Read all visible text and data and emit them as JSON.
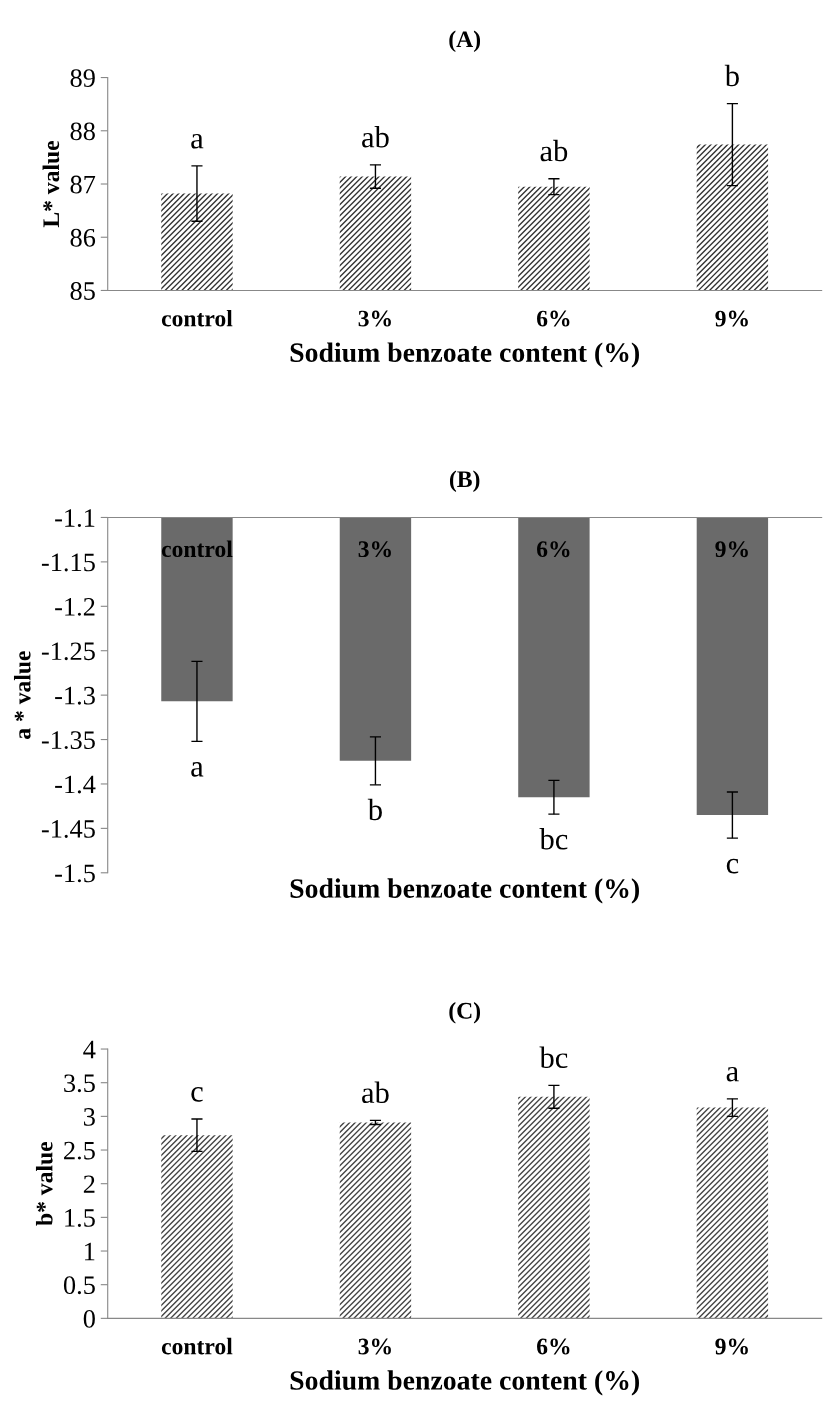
{
  "chart_data": [
    {
      "type": "bar",
      "title": "(A)",
      "xlabel": "Sodium benzoate content (%)",
      "ylabel": "L* value",
      "categories": [
        "control",
        "3%",
        "6%",
        "9%"
      ],
      "values": [
        86.82,
        87.14,
        86.95,
        87.74
      ],
      "errors": [
        0.52,
        0.22,
        0.15,
        0.77
      ],
      "color": "#333333",
      "ylim": [
        85,
        89
      ],
      "yticks": [
        85,
        86,
        87,
        88,
        89
      ],
      "grid": false,
      "annotations": [
        "a",
        "ab",
        "ab",
        "b"
      ]
    },
    {
      "type": "bar",
      "title": "(B)",
      "xlabel": "Sodium benzoate content (%)",
      "ylabel": "a * value",
      "categories": [
        "control",
        "3%",
        "6%",
        "9%"
      ],
      "values": [
        -1.307,
        -1.374,
        -1.415,
        -1.435
      ],
      "errors": [
        0.045,
        0.027,
        0.019,
        0.026
      ],
      "color": "#6a6a6a",
      "ylim": [
        -1.5,
        -1.1
      ],
      "yticks": [
        {
          "value": -1.5,
          "label": "-1.5"
        },
        {
          "value": -1.45,
          "label": "-1.45"
        },
        {
          "value": -1.4,
          "label": "-1.4"
        },
        {
          "value": -1.35,
          "label": "-1.35"
        },
        {
          "value": -1.3,
          "label": "-1.3"
        },
        {
          "value": -1.25,
          "label": "-1.25"
        },
        {
          "value": -1.2,
          "label": "-1.2"
        },
        {
          "value": -1.15,
          "label": "-1.15"
        },
        {
          "value": -1.1,
          "label": "-1.1"
        }
      ],
      "grid": false,
      "annotations": [
        "a",
        "b",
        "bc",
        "c"
      ]
    },
    {
      "type": "bar",
      "title": "(C)",
      "xlabel": "Sodium benzoate content (%)",
      "ylabel": "b* value",
      "categories": [
        "control",
        "3%",
        "6%",
        "9%"
      ],
      "values": [
        2.72,
        2.91,
        3.29,
        3.13
      ],
      "errors": [
        0.24,
        0.03,
        0.17,
        0.13
      ],
      "color": "#444444",
      "ylim": [
        0,
        4
      ],
      "yticks": [
        0,
        0.5,
        1,
        1.5,
        2,
        2.5,
        3,
        3.5,
        4
      ],
      "grid": false,
      "annotations": [
        "c",
        "ab",
        "bc",
        "a"
      ]
    }
  ]
}
